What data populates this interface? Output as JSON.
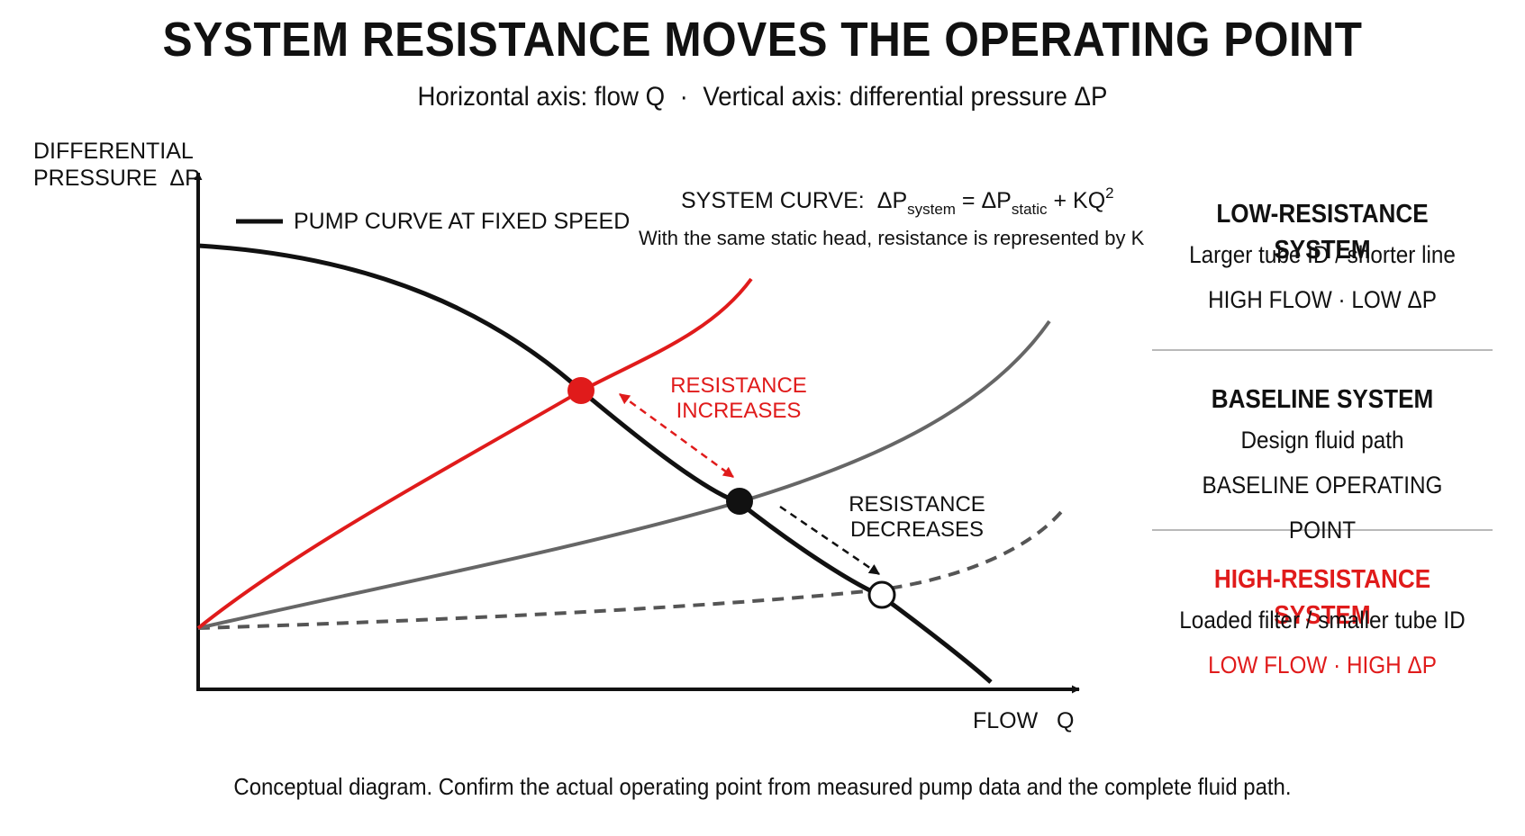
{
  "title": "SYSTEM RESISTANCE MOVES THE OPERATING POINT",
  "subtitle": {
    "part1": "Horizontal axis: flow Q",
    "separator": "·",
    "part2": "Vertical axis: differential pressure ΔP"
  },
  "axes": {
    "y_label_line1": "DIFFERENTIAL",
    "y_label_line2": "PRESSURE  ΔP",
    "x_label": "FLOW   Q"
  },
  "legend": {
    "pump_curve": "PUMP CURVE AT FIXED SPEED"
  },
  "system_curve": {
    "label": "SYSTEM CURVE:",
    "delta_p": "ΔP",
    "sub_system": "system",
    "equals": " = ΔP",
    "sub_static": "static",
    "plus": " + KQ",
    "sup_2": "2",
    "note": "With the same static head, resistance is represented by K"
  },
  "annotations": {
    "increase_line1": "RESISTANCE",
    "increase_line2": "INCREASES",
    "decrease_line1": "RESISTANCE",
    "decrease_line2": "DECREASES"
  },
  "panels": {
    "low": {
      "title": "LOW-RESISTANCE SYSTEM",
      "line1": "Larger tube ID / shorter line",
      "line2": "HIGH FLOW · LOW ΔP"
    },
    "baseline": {
      "title": "BASELINE SYSTEM",
      "line1": "Design fluid path",
      "line2": "BASELINE OPERATING POINT"
    },
    "high": {
      "title": "HIGH-RESISTANCE SYSTEM",
      "line1": "Loaded filter / smaller tube ID",
      "line2": "LOW FLOW · HIGH ΔP"
    }
  },
  "footer": "Conceptual diagram. Confirm the actual operating point from measured pump data and the complete fluid path.",
  "colors": {
    "high_resistance": "#e01b1b",
    "baseline": "#111111",
    "low_resistance": "#555555",
    "divider": "#b9b9b9"
  }
}
